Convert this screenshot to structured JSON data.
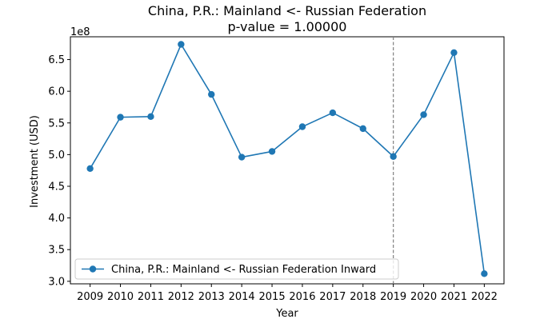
{
  "chart_data": {
    "type": "line",
    "title": "China, P.R.: Mainland <- Russian Federation",
    "subtitle": "p-value = 1.00000",
    "xlabel": "Year",
    "ylabel": "Investment (USD)",
    "y_offset_label": "1e8",
    "y_multiplier": 100000000,
    "x": [
      2009,
      2010,
      2011,
      2012,
      2013,
      2014,
      2015,
      2016,
      2017,
      2018,
      2019,
      2020,
      2021,
      2022
    ],
    "x_ticks": [
      "2009",
      "2010",
      "2011",
      "2012",
      "2013",
      "2014",
      "2015",
      "2016",
      "2017",
      "2018",
      "2019",
      "2020",
      "2021",
      "2022"
    ],
    "y_ticks": [
      "3.0",
      "3.5",
      "4.0",
      "4.5",
      "5.0",
      "5.5",
      "6.0",
      "6.5"
    ],
    "y_tick_values": [
      3.0,
      3.5,
      4.0,
      4.5,
      5.0,
      5.5,
      6.0,
      6.5
    ],
    "ylim": [
      2.96,
      6.86
    ],
    "xlim": [
      2008.35,
      2022.65
    ],
    "series": [
      {
        "name": "China, P.R.: Mainland <- Russian Federation Inward",
        "color": "#1f77b4",
        "marker": "circle",
        "values": [
          4.78,
          5.59,
          5.6,
          6.74,
          5.95,
          4.96,
          5.05,
          5.44,
          5.66,
          5.41,
          4.97,
          5.63,
          6.61,
          3.12
        ]
      }
    ],
    "vline": {
      "x": 2019,
      "style": "dashed",
      "color": "#808080"
    },
    "legend_position": "lower-left",
    "grid": false
  }
}
